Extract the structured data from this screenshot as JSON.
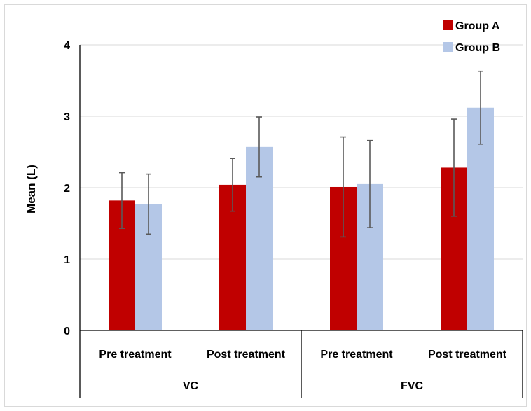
{
  "chart_data": {
    "type": "bar",
    "ylabel": "Mean (L)",
    "ylim": [
      0,
      4
    ],
    "yticks": [
      "0",
      "1",
      "2",
      "3",
      "4"
    ],
    "grid": true,
    "legend_position": "top-right",
    "groups": [
      {
        "label": "VC",
        "categories": [
          "Pre treatment",
          "Post treatment"
        ]
      },
      {
        "label": "FVC",
        "categories": [
          "Pre treatment",
          "Post treatment"
        ]
      }
    ],
    "categories": [
      "Pre treatment",
      "Post treatment",
      "Pre treatment",
      "Post treatment"
    ],
    "series": [
      {
        "name": "Group A",
        "color": "#c00000",
        "values": [
          1.82,
          2.04,
          2.01,
          2.28
        ],
        "error": [
          0.39,
          0.37,
          0.7,
          0.68
        ]
      },
      {
        "name": "Group B",
        "color": "#b4c7e7",
        "values": [
          1.77,
          2.57,
          2.05,
          3.12
        ],
        "error": [
          0.42,
          0.42,
          0.61,
          0.51
        ]
      }
    ]
  }
}
